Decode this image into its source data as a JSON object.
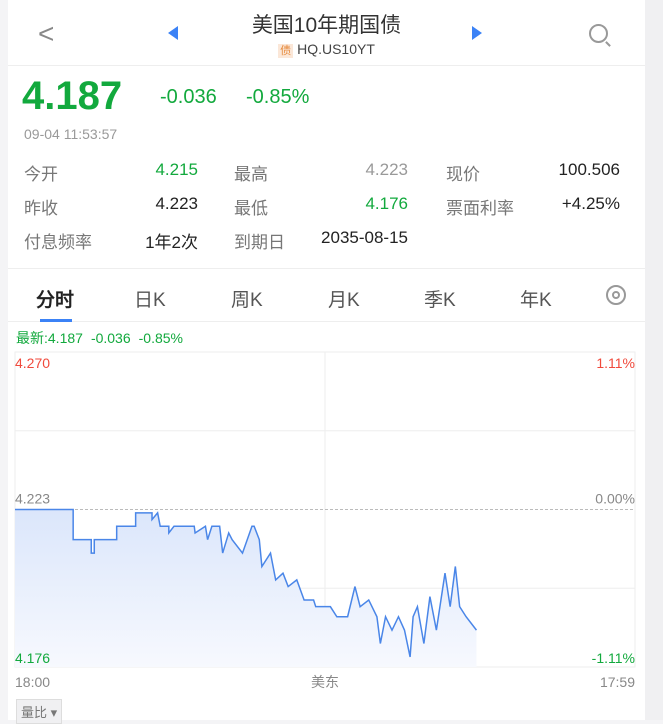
{
  "header": {
    "title": "美国10年期国债",
    "badge": "债",
    "code": "HQ.US10YT",
    "icons": [
      "back-chevron-icon",
      "prev-triangle-icon",
      "next-triangle-icon",
      "search-icon"
    ]
  },
  "quote": {
    "price": "4.187",
    "change": "-0.036",
    "change_pct": "-0.85%",
    "time": "09-04 11:53:57"
  },
  "stats": [
    {
      "label": "今开",
      "value": "4.215",
      "color": "#12a93d"
    },
    {
      "label": "最高",
      "value": "4.223",
      "color": "#999999"
    },
    {
      "label": "现价",
      "value": "100.506",
      "color": "#222222"
    },
    {
      "label": "昨收",
      "value": "4.223",
      "color": "#222222"
    },
    {
      "label": "最低",
      "value": "4.176",
      "color": "#12a93d"
    },
    {
      "label": "票面利率",
      "value": "+4.25%",
      "color": "#222222"
    },
    {
      "label": "付息频率",
      "value": "1年2次",
      "color": "#222222"
    },
    {
      "label": "到期日",
      "value": "2035-08-15",
      "color": "#222222"
    }
  ],
  "tabs": [
    {
      "label": "分时",
      "active": true
    },
    {
      "label": "日K"
    },
    {
      "label": "周K"
    },
    {
      "label": "月K"
    },
    {
      "label": "季K"
    },
    {
      "label": "年K"
    }
  ],
  "latest_bar": {
    "latest": "最新:4.187",
    "change": "-0.036",
    "pct": "-0.85%"
  },
  "colors": {
    "up": "#f04a3c",
    "down": "#12a93d",
    "line": "#4a86e8",
    "accent": "#3b82f6"
  },
  "chart_data": {
    "type": "line",
    "ylim": [
      4.176,
      4.27
    ],
    "prev_close": 4.223,
    "y_left_ticks": [
      "4.270",
      "4.223",
      "4.176"
    ],
    "y_right_ticks": [
      "1.11%",
      "0.00%",
      "-1.11%"
    ],
    "x_ticks": [
      "18:00",
      "美东",
      "17:59"
    ],
    "points": [
      [
        "18:00",
        4.223
      ],
      [
        "20:15",
        4.223
      ],
      [
        "20:15",
        4.214
      ],
      [
        "20:57",
        4.214
      ],
      [
        "20:57",
        4.21
      ],
      [
        "21:04",
        4.21
      ],
      [
        "21:04",
        4.214
      ],
      [
        "21:56",
        4.214
      ],
      [
        "21:56",
        4.218
      ],
      [
        "22:40",
        4.218
      ],
      [
        "22:40",
        4.222
      ],
      [
        "23:18",
        4.222
      ],
      [
        "23:18",
        4.22
      ],
      [
        "23:31",
        4.222
      ],
      [
        "23:37",
        4.218
      ],
      [
        "23:57",
        4.218
      ],
      [
        "23:57",
        4.216
      ],
      [
        "00:09",
        4.218
      ],
      [
        "00:56",
        4.218
      ],
      [
        "00:58",
        4.216
      ],
      [
        "01:22",
        4.218
      ],
      [
        "01:27",
        4.214
      ],
      [
        "01:37",
        4.218
      ],
      [
        "01:55",
        4.218
      ],
      [
        "02:02",
        4.21
      ],
      [
        "02:16",
        4.216
      ],
      [
        "02:24",
        4.214
      ],
      [
        "02:48",
        4.21
      ],
      [
        "03:10",
        4.218
      ],
      [
        "03:15",
        4.218
      ],
      [
        "03:27",
        4.214
      ],
      [
        "03:33",
        4.206
      ],
      [
        "03:53",
        4.21
      ],
      [
        "04:05",
        4.202
      ],
      [
        "04:22",
        4.204
      ],
      [
        "04:34",
        4.2
      ],
      [
        "04:54",
        4.202
      ],
      [
        "05:11",
        4.196
      ],
      [
        "05:33",
        4.196
      ],
      [
        "05:38",
        4.194
      ],
      [
        "06:12",
        4.194
      ],
      [
        "06:27",
        4.191
      ],
      [
        "06:52",
        4.191
      ],
      [
        "07:09",
        4.2
      ],
      [
        "07:21",
        4.194
      ],
      [
        "07:41",
        4.196
      ],
      [
        "08:00",
        4.191
      ],
      [
        "08:08",
        4.183
      ],
      [
        "08:20",
        4.191
      ],
      [
        "08:35",
        4.187
      ],
      [
        "08:50",
        4.191
      ],
      [
        "09:04",
        4.187
      ],
      [
        "09:17",
        4.179
      ],
      [
        "09:24",
        4.191
      ],
      [
        "09:34",
        4.194
      ],
      [
        "09:49",
        4.183
      ],
      [
        "10:03",
        4.197
      ],
      [
        "10:18",
        4.187
      ],
      [
        "10:38",
        4.204
      ],
      [
        "10:50",
        4.194
      ],
      [
        "11:02",
        4.206
      ],
      [
        "11:12",
        4.194
      ],
      [
        "11:27",
        4.191
      ],
      [
        "11:51",
        4.187
      ]
    ]
  },
  "volume_selector": "量比 ▾"
}
